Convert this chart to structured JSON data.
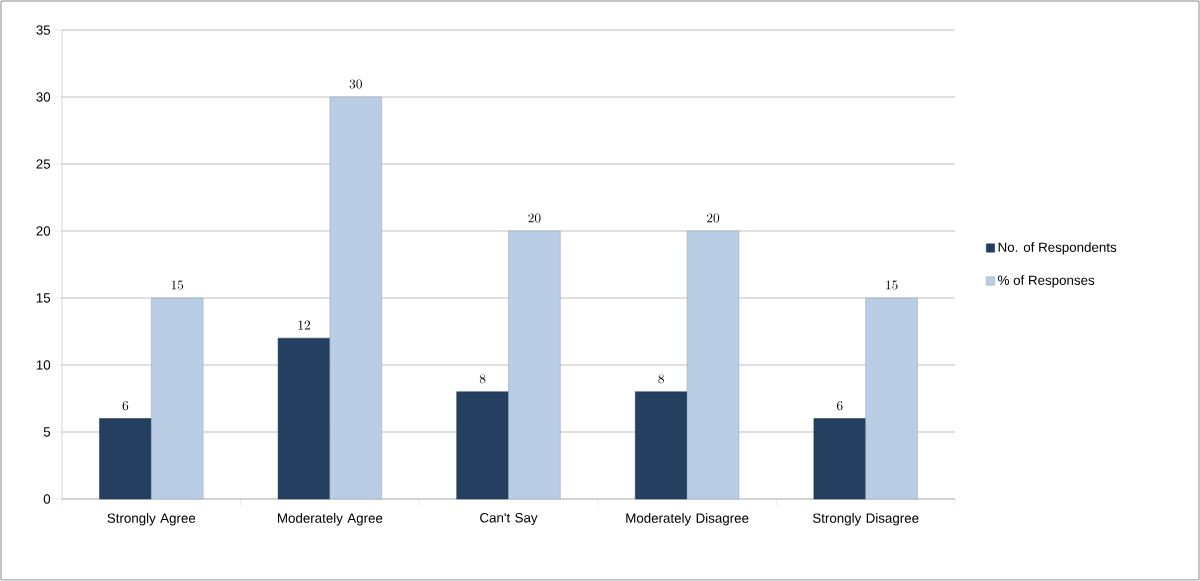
{
  "chart_data": {
    "type": "bar",
    "categories": [
      "Strongly Agree",
      "Moderately Agree",
      "Can't Say",
      "Moderately Disagree",
      "Strongly Disagree"
    ],
    "series": [
      {
        "name": "No. of Respondents",
        "color": "#243f60",
        "values": [
          6,
          12,
          8,
          8,
          6
        ]
      },
      {
        "name": "% of Responses",
        "color": "#b9cde5",
        "values": [
          15,
          30,
          20,
          20,
          15
        ]
      }
    ],
    "ylim": [
      0,
      35
    ],
    "yticks": [
      0,
      5,
      10,
      15,
      20,
      25,
      30,
      35
    ],
    "grid": "y",
    "legend": "right",
    "data_labels": true
  }
}
